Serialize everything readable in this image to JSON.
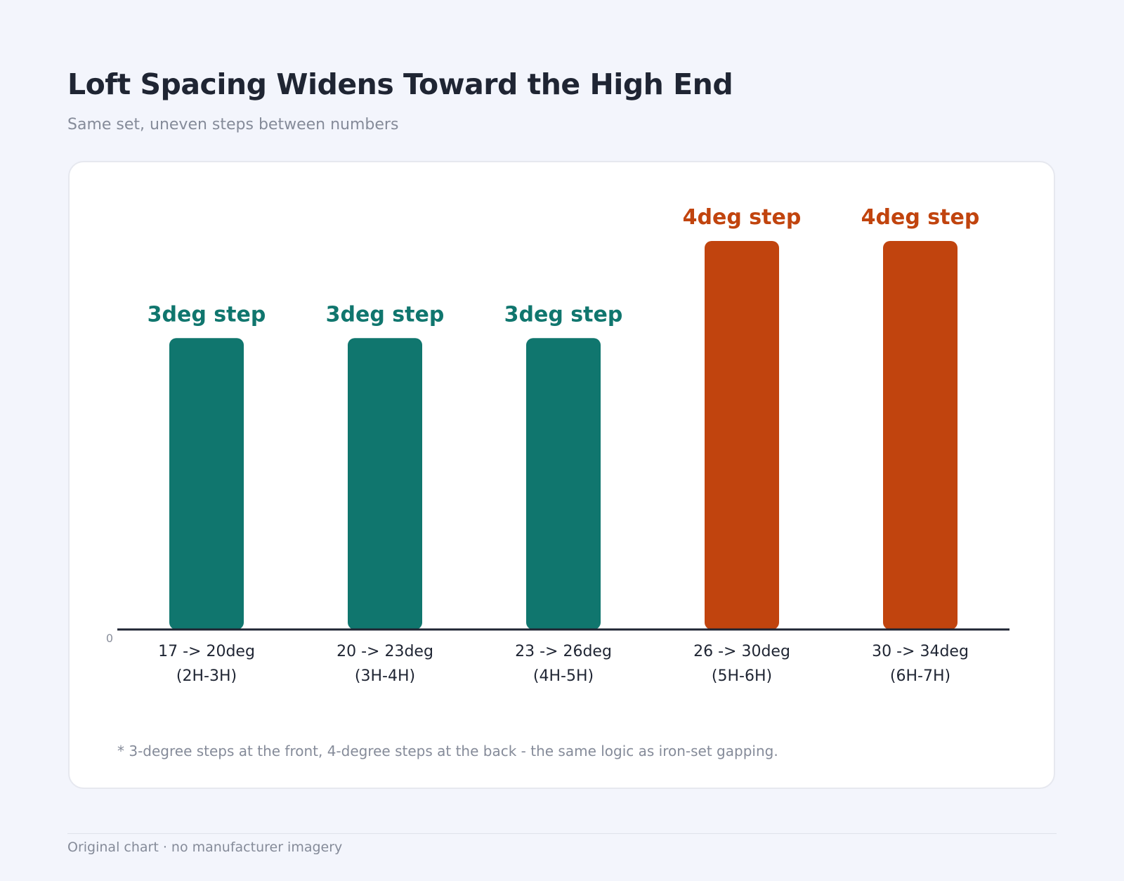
{
  "header": {
    "title": "Loft Spacing Widens Toward the High End",
    "subtitle": "Same set, uneven steps between numbers"
  },
  "chart_data": {
    "type": "bar",
    "title": "Loft Spacing Widens Toward the High End",
    "subtitle": "Same set, uneven steps between numbers",
    "categories": [
      [
        "17 -> 20deg",
        "(2H-3H)"
      ],
      [
        "20 -> 23deg",
        "(3H-4H)"
      ],
      [
        "23 -> 26deg",
        "(4H-5H)"
      ],
      [
        "26 -> 30deg",
        "(5H-6H)"
      ],
      [
        "30 -> 34deg",
        "(6H-7H)"
      ]
    ],
    "values": [
      3,
      3,
      3,
      4,
      4
    ],
    "data_labels": [
      "3deg step",
      "3deg step",
      "3deg step",
      "4deg step",
      "4deg step"
    ],
    "colors": [
      "#10766e",
      "#10766e",
      "#10766e",
      "#c1440e",
      "#c1440e"
    ],
    "y_tick_labels": [
      "0"
    ],
    "ylim": [
      0,
      4
    ],
    "xlabel": "",
    "ylabel": "",
    "grid": false,
    "legend": "none"
  },
  "footnote": "* 3-degree steps at the front, 4-degree steps at the back - the same logic as iron-set gapping.",
  "footer": "Original chart · no manufacturer imagery"
}
